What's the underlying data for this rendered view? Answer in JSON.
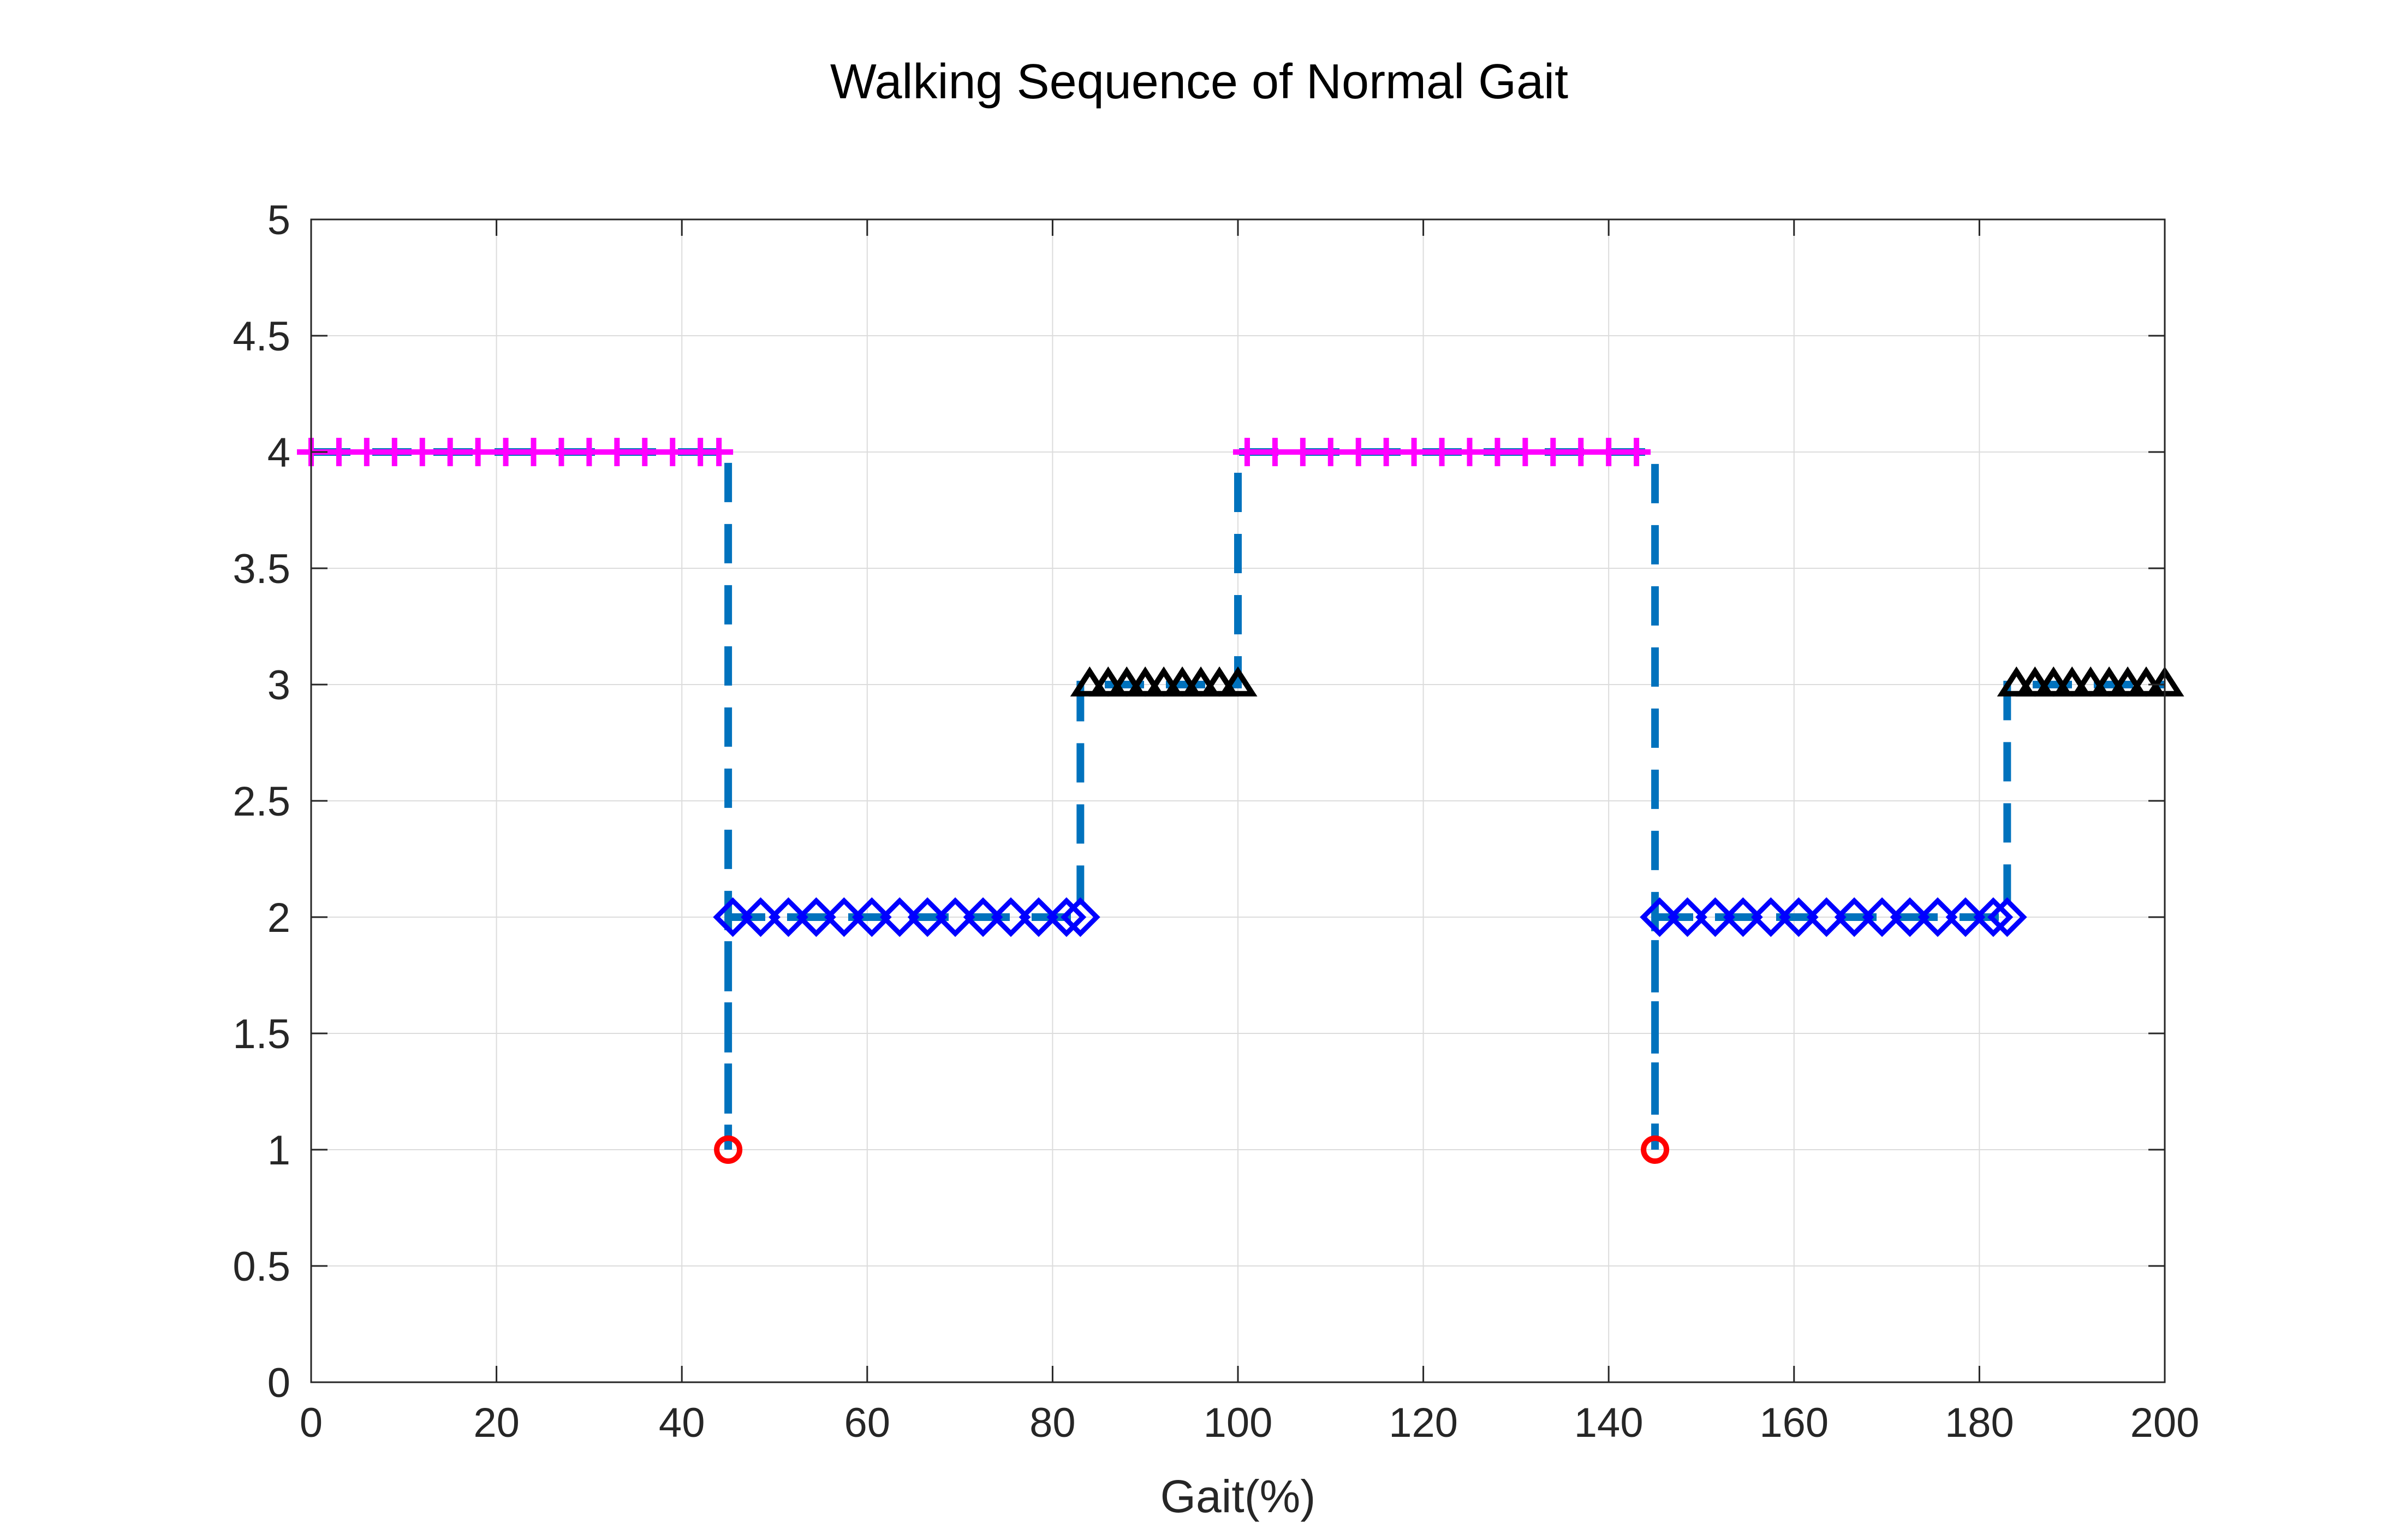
{
  "chart_data": {
    "type": "line",
    "title": "Walking Sequence of Normal Gait",
    "xlabel": "Gait(%)",
    "ylabel": "",
    "xlim": [
      0,
      200
    ],
    "ylim": [
      0,
      5
    ],
    "xticks": [
      0,
      20,
      40,
      60,
      80,
      100,
      120,
      140,
      160,
      180,
      200
    ],
    "yticks": [
      0,
      0.5,
      1,
      1.5,
      2,
      2.5,
      3,
      3.5,
      4,
      4.5,
      5
    ],
    "xtick_labels": [
      "0",
      "20",
      "40",
      "60",
      "80",
      "100",
      "120",
      "140",
      "160",
      "180",
      "200"
    ],
    "ytick_labels": [
      "0",
      "0.5",
      "1",
      "1.5",
      "2",
      "2.5",
      "3",
      "3.5",
      "4",
      "4.5",
      "5"
    ],
    "grid": true,
    "legend": "none",
    "series": [
      {
        "line": "dashed",
        "color": "#0072BD",
        "x": [
          0,
          45,
          45,
          45,
          83,
          83,
          100,
          100,
          145,
          145,
          145,
          183,
          183,
          200
        ],
        "y": [
          4,
          4,
          1,
          2,
          2,
          3,
          3,
          4,
          4,
          1,
          2,
          2,
          3,
          3
        ]
      },
      {
        "marker": "plus",
        "color": "#FF00FF",
        "x": [
          0,
          3,
          6,
          9,
          12,
          15,
          18,
          21,
          24,
          27,
          30,
          33,
          36,
          39,
          42,
          44,
          101,
          104,
          107,
          110,
          113,
          116,
          119,
          122,
          125,
          128,
          131,
          134,
          137,
          140,
          143
        ],
        "y": [
          4,
          4,
          4,
          4,
          4,
          4,
          4,
          4,
          4,
          4,
          4,
          4,
          4,
          4,
          4,
          4,
          4,
          4,
          4,
          4,
          4,
          4,
          4,
          4,
          4,
          4,
          4,
          4,
          4,
          4,
          4
        ]
      },
      {
        "marker": "circle",
        "color": "#FF0000",
        "x": [
          45,
          145
        ],
        "y": [
          1,
          1
        ]
      },
      {
        "marker": "diamond",
        "color": "#0000FF",
        "x": [
          45.5,
          48.5,
          51.5,
          54.5,
          57.5,
          60.5,
          63.5,
          66.5,
          69.5,
          72.5,
          75.5,
          78.5,
          81.5,
          83,
          145.5,
          148.5,
          151.5,
          154.5,
          157.5,
          160.5,
          163.5,
          166.5,
          169.5,
          172.5,
          175.5,
          178.5,
          181.5,
          183
        ],
        "y": [
          2,
          2,
          2,
          2,
          2,
          2,
          2,
          2,
          2,
          2,
          2,
          2,
          2,
          2,
          2,
          2,
          2,
          2,
          2,
          2,
          2,
          2,
          2,
          2,
          2,
          2,
          2,
          2
        ]
      },
      {
        "marker": "triangle",
        "color": "#000000",
        "x": [
          84,
          86,
          88,
          90,
          92,
          94,
          96,
          98,
          100,
          184,
          186,
          188,
          190,
          192,
          194,
          196,
          198,
          200
        ],
        "y": [
          3,
          3,
          3,
          3,
          3,
          3,
          3,
          3,
          3,
          3,
          3,
          3,
          3,
          3,
          3,
          3,
          3,
          3
        ]
      }
    ]
  }
}
